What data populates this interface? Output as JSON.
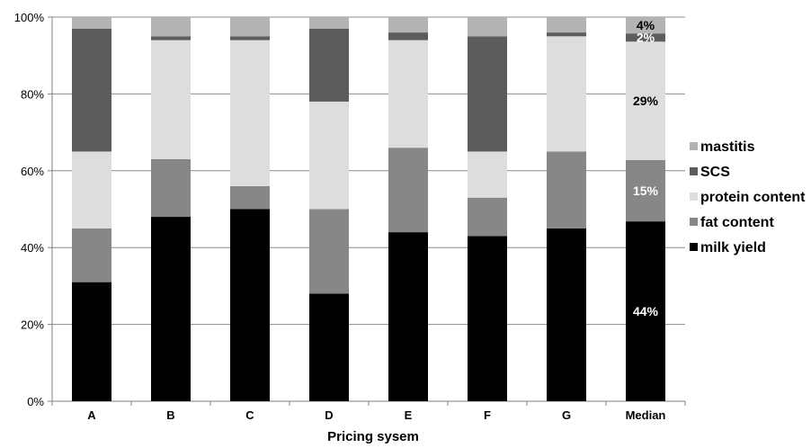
{
  "chart_data": {
    "type": "bar",
    "stacked": true,
    "percent_stacked": true,
    "categories": [
      "A",
      "B",
      "C",
      "D",
      "E",
      "F",
      "G",
      "Median"
    ],
    "series": [
      {
        "name": "milk yield",
        "color": "#000000",
        "values": [
          31,
          48,
          50,
          28,
          44,
          43,
          45,
          44
        ]
      },
      {
        "name": "fat content",
        "color": "#878787",
        "values": [
          14,
          15,
          6,
          22,
          22,
          10,
          20,
          15
        ]
      },
      {
        "name": "protein content",
        "color": "#dddddd",
        "values": [
          20,
          31,
          38,
          28,
          28,
          12,
          30,
          29
        ]
      },
      {
        "name": "SCS",
        "color": "#5c5c5c",
        "values": [
          32,
          1,
          1,
          19,
          2,
          30,
          1,
          2
        ]
      },
      {
        "name": "mastitis",
        "color": "#b3b3b3",
        "values": [
          3,
          5,
          5,
          3,
          4,
          5,
          4,
          4
        ]
      }
    ],
    "yticks": [
      "0%",
      "20%",
      "40%",
      "60%",
      "80%",
      "100%"
    ],
    "ylim": [
      0,
      100
    ],
    "xlabel": "Pricing sysem",
    "ylabel": "",
    "grid": true,
    "legend_position": "right",
    "data_labels": [
      {
        "category": "Median",
        "series": "milk yield",
        "text": "44%",
        "color": "#ffffff"
      },
      {
        "category": "Median",
        "series": "fat content",
        "text": "15%",
        "color": "#ffffff"
      },
      {
        "category": "Median",
        "series": "protein content",
        "text": "29%",
        "color": "#000000"
      },
      {
        "category": "Median",
        "series": "SCS",
        "text": "2%",
        "color": "#ffffff"
      },
      {
        "category": "Median",
        "series": "mastitis",
        "text": "4%",
        "color": "#000000"
      }
    ]
  }
}
